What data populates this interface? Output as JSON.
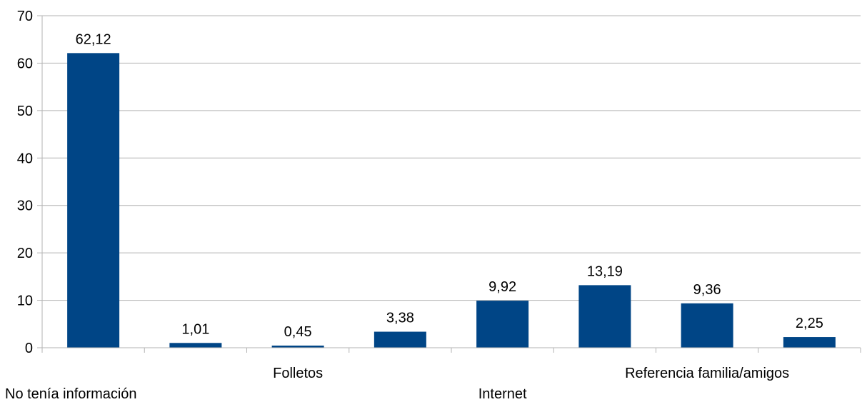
{
  "chart_data": {
    "type": "bar",
    "categories": [
      "No tenía información",
      "",
      "Folletos",
      "",
      "Internet",
      "",
      "Referencia familia/amigos",
      ""
    ],
    "values": [
      62.12,
      1.01,
      0.45,
      3.38,
      9.92,
      13.19,
      9.36,
      2.25
    ],
    "data_labels": [
      "62,12",
      "1,01",
      "0,45",
      "3,38",
      "9,92",
      "13,19",
      "9,36",
      "2,25"
    ],
    "yticks": [
      "0",
      "10",
      "20",
      "30",
      "40",
      "50",
      "60",
      "70"
    ],
    "ylim": [
      0,
      70
    ],
    "grid": true,
    "legend": "none",
    "title": "",
    "xlabel": "",
    "ylabel": "",
    "colors": {
      "bar": "#004586",
      "grid": "#b3b3b3",
      "axis": "#b3b3b3"
    }
  }
}
